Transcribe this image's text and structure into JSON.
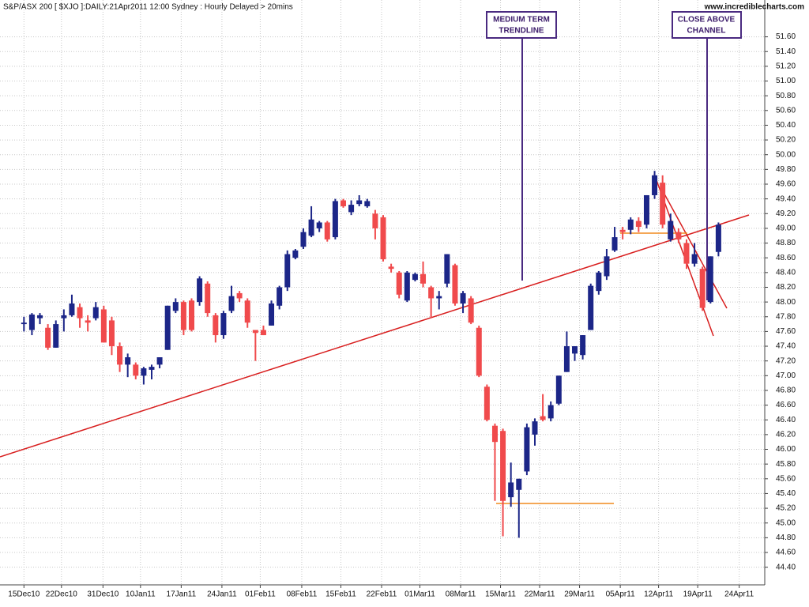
{
  "chart_data": {
    "type": "candlestick",
    "title": "S&P/ASX 200 [ $XJO ]:DAILY:21Apr2011 12:00 Sydney : Hourly Delayed > 20mins",
    "watermark": "www.incrediblecharts.com",
    "annotations": [
      {
        "lines": [
          "MEDIUM TERM",
          "TRENDLINE"
        ]
      },
      {
        "lines": [
          "CLOSE ABOVE",
          "CHANNEL"
        ]
      }
    ],
    "up_color": "#1c2688",
    "down_color": "#f04a4c",
    "grid": true,
    "xlim": [
      -3,
      92.8
    ],
    "ylim": [
      44.16,
      52.1
    ],
    "xticks": [
      {
        "value": 0,
        "label": "15Dec10"
      },
      {
        "value": 4.7,
        "label": "22Dec10"
      },
      {
        "value": 9.9,
        "label": "31Dec10"
      },
      {
        "value": 14.6,
        "label": "10Jan11"
      },
      {
        "value": 19.7,
        "label": "17Jan11"
      },
      {
        "value": 24.8,
        "label": "24Jan11"
      },
      {
        "value": 29.6,
        "label": "01Feb11"
      },
      {
        "value": 34.8,
        "label": "08Feb11"
      },
      {
        "value": 39.7,
        "label": "15Feb11"
      },
      {
        "value": 44.8,
        "label": "22Feb11"
      },
      {
        "value": 49.6,
        "label": "01Mar11"
      },
      {
        "value": 54.7,
        "label": "08Mar11"
      },
      {
        "value": 59.7,
        "label": "15Mar11"
      },
      {
        "value": 64.6,
        "label": "22Mar11"
      },
      {
        "value": 69.6,
        "label": "29Mar11"
      },
      {
        "value": 74.7,
        "label": "05Apr11"
      },
      {
        "value": 79.5,
        "label": "12Apr11"
      },
      {
        "value": 84.4,
        "label": "19Apr11"
      },
      {
        "value": 89.6,
        "label": "24Apr11"
      }
    ],
    "yticks": [
      {
        "value": 44.4,
        "label": "44.40"
      },
      {
        "value": 44.6,
        "label": "44.60"
      },
      {
        "value": 44.8,
        "label": "44.80"
      },
      {
        "value": 45.0,
        "label": "45.00"
      },
      {
        "value": 45.2,
        "label": "45.20"
      },
      {
        "value": 45.4,
        "label": "45.40"
      },
      {
        "value": 45.6,
        "label": "45.60"
      },
      {
        "value": 45.8,
        "label": "45.80"
      },
      {
        "value": 46.0,
        "label": "46.00"
      },
      {
        "value": 46.2,
        "label": "46.20"
      },
      {
        "value": 46.4,
        "label": "46.40"
      },
      {
        "value": 46.6,
        "label": "46.60"
      },
      {
        "value": 46.8,
        "label": "46.80"
      },
      {
        "value": 47.0,
        "label": "47.00"
      },
      {
        "value": 47.2,
        "label": "47.20"
      },
      {
        "value": 47.4,
        "label": "47.40"
      },
      {
        "value": 47.6,
        "label": "47.60"
      },
      {
        "value": 47.8,
        "label": "47.80"
      },
      {
        "value": 48.0,
        "label": "48.00"
      },
      {
        "value": 48.2,
        "label": "48.20"
      },
      {
        "value": 48.4,
        "label": "48.40"
      },
      {
        "value": 48.6,
        "label": "48.60"
      },
      {
        "value": 48.8,
        "label": "48.80"
      },
      {
        "value": 49.0,
        "label": "49.00"
      },
      {
        "value": 49.2,
        "label": "49.20"
      },
      {
        "value": 49.4,
        "label": "49.40"
      },
      {
        "value": 49.6,
        "label": "49.60"
      },
      {
        "value": 49.8,
        "label": "49.80"
      },
      {
        "value": 50.0,
        "label": "50.00"
      },
      {
        "value": 50.2,
        "label": "50.20"
      },
      {
        "value": 50.4,
        "label": "50.40"
      },
      {
        "value": 50.6,
        "label": "50.60"
      },
      {
        "value": 50.8,
        "label": "50.80"
      },
      {
        "value": 51.0,
        "label": "51.00"
      },
      {
        "value": 51.2,
        "label": "51.20"
      },
      {
        "value": 51.4,
        "label": "51.40"
      },
      {
        "value": 51.6,
        "label": "51.60"
      }
    ],
    "x": [
      0,
      1,
      2,
      3,
      4,
      5,
      6,
      7,
      8,
      9,
      10,
      11,
      12,
      13,
      14,
      15,
      16,
      17,
      18,
      19,
      20,
      21,
      22,
      23,
      24,
      25,
      26,
      27,
      28,
      29,
      30,
      31,
      32,
      33,
      34,
      35,
      36,
      37,
      38,
      39,
      40,
      41,
      42,
      43,
      44,
      45,
      46,
      47,
      48,
      49,
      50,
      51,
      52,
      53,
      54,
      55,
      56,
      57,
      58,
      59,
      60,
      61,
      62,
      63,
      64,
      65,
      66,
      67,
      68,
      69,
      70,
      71,
      72,
      73,
      74,
      75,
      76,
      77,
      78,
      79,
      80,
      81,
      82,
      83,
      84,
      85,
      86,
      87
    ],
    "open": [
      47.7,
      47.62,
      47.78,
      47.65,
      47.38,
      47.78,
      47.82,
      47.93,
      47.75,
      47.78,
      47.9,
      47.75,
      47.4,
      47.15,
      47.15,
      47.0,
      47.08,
      47.15,
      47.35,
      47.88,
      48.0,
      48.02,
      48.0,
      48.25,
      47.82,
      47.55,
      47.88,
      48.12,
      48.02,
      47.62,
      47.62,
      47.68,
      47.95,
      48.2,
      48.6,
      48.75,
      48.9,
      49.0,
      49.08,
      48.88,
      49.38,
      49.22,
      49.33,
      49.3,
      49.2,
      49.15,
      48.48,
      48.4,
      48.02,
      48.3,
      48.38,
      48.2,
      48.05,
      48.25,
      48.5,
      47.98,
      48.05,
      47.65,
      46.85,
      46.32,
      46.25,
      45.35,
      45.45,
      45.7,
      46.2,
      46.45,
      46.42,
      46.62,
      47.05,
      47.3,
      47.28,
      47.62,
      48.15,
      48.35,
      48.7,
      48.98,
      48.98,
      49.1,
      49.05,
      49.45,
      49.62,
      48.85,
      48.95,
      48.8,
      48.52,
      48.45,
      48.0,
      48.68
    ],
    "high": [
      47.8,
      47.85,
      47.85,
      47.7,
      47.75,
      47.9,
      48.1,
      47.98,
      47.82,
      48.0,
      47.95,
      47.8,
      47.45,
      47.3,
      47.18,
      47.12,
      47.15,
      47.25,
      47.95,
      48.05,
      48.02,
      48.05,
      48.35,
      48.28,
      47.85,
      47.88,
      48.22,
      48.15,
      48.05,
      47.62,
      47.68,
      48.02,
      48.22,
      48.7,
      48.72,
      49.0,
      49.3,
      49.1,
      49.1,
      49.4,
      49.4,
      49.38,
      49.45,
      49.4,
      49.25,
      49.18,
      48.52,
      48.42,
      48.42,
      48.4,
      48.55,
      48.22,
      48.15,
      48.65,
      48.52,
      48.15,
      48.08,
      47.68,
      46.88,
      46.35,
      46.28,
      45.82,
      45.6,
      46.35,
      46.42,
      46.75,
      46.65,
      47.0,
      47.6,
      47.4,
      47.55,
      48.25,
      48.42,
      48.72,
      49.02,
      49.02,
      49.15,
      49.15,
      49.45,
      49.78,
      49.72,
      49.2,
      49.0,
      48.85,
      48.8,
      48.48,
      48.62,
      49.08
    ],
    "low": [
      47.6,
      47.55,
      47.7,
      47.35,
      47.38,
      47.6,
      47.8,
      47.65,
      47.6,
      47.75,
      47.45,
      47.28,
      47.05,
      46.98,
      46.95,
      46.88,
      46.95,
      47.1,
      47.35,
      47.85,
      47.55,
      47.6,
      47.95,
      47.8,
      47.45,
      47.5,
      47.85,
      48.0,
      47.65,
      47.2,
      47.55,
      47.68,
      47.9,
      48.15,
      48.58,
      48.72,
      48.88,
      48.95,
      48.82,
      48.85,
      49.28,
      49.18,
      49.3,
      49.28,
      48.85,
      48.55,
      48.4,
      48.05,
      48.0,
      48.28,
      48.2,
      47.78,
      47.9,
      48.2,
      47.95,
      47.85,
      47.7,
      46.98,
      46.38,
      45.3,
      44.82,
      45.22,
      44.8,
      45.65,
      46.05,
      46.38,
      46.38,
      46.6,
      47.05,
      47.2,
      47.22,
      47.62,
      48.1,
      48.3,
      48.68,
      48.85,
      48.92,
      48.95,
      49.0,
      49.4,
      49.0,
      48.82,
      48.8,
      48.45,
      48.48,
      47.88,
      47.98,
      48.62
    ],
    "close": [
      47.72,
      47.83,
      47.82,
      47.38,
      47.7,
      47.82,
      47.98,
      47.78,
      47.72,
      47.93,
      47.45,
      47.4,
      47.15,
      47.25,
      47.0,
      47.1,
      47.12,
      47.25,
      47.95,
      48.0,
      47.62,
      47.62,
      48.32,
      47.85,
      47.55,
      47.85,
      48.08,
      48.05,
      47.72,
      47.58,
      47.55,
      47.98,
      48.2,
      48.65,
      48.7,
      48.95,
      49.12,
      49.08,
      48.85,
      49.37,
      49.3,
      49.32,
      49.38,
      49.37,
      49.0,
      48.58,
      48.45,
      48.1,
      48.4,
      48.38,
      48.25,
      48.05,
      48.08,
      48.65,
      47.98,
      48.12,
      47.72,
      47.0,
      46.4,
      46.1,
      45.3,
      45.55,
      45.6,
      46.3,
      46.38,
      46.4,
      46.6,
      47.0,
      47.4,
      47.4,
      47.55,
      48.22,
      48.4,
      48.62,
      48.88,
      48.95,
      49.12,
      49.02,
      49.45,
      49.72,
      49.05,
      49.1,
      48.85,
      48.52,
      48.65,
      47.92,
      48.62,
      49.05
    ]
  }
}
